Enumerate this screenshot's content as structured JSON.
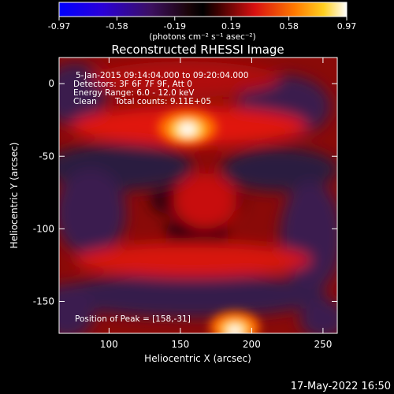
{
  "chart_data": {
    "type": "heatmap",
    "title": "Reconstructed RHESSI Image",
    "xlabel": "Heliocentric X (arcsec)",
    "ylabel": "Heliocentric Y (arcsec)",
    "xlim": [
      65,
      260
    ],
    "ylim": [
      -172,
      18
    ],
    "x_ticks": [
      100,
      150,
      200,
      250
    ],
    "y_ticks": [
      0,
      -50,
      -100,
      -150
    ],
    "colorbar": {
      "min": -0.97,
      "max": 0.97,
      "ticks": [
        "-0.97",
        "-0.58",
        "-0.19",
        "0.19",
        "0.58",
        "0.97"
      ],
      "tick_values": [
        -0.97,
        -0.58,
        -0.19,
        0.19,
        0.58,
        0.97
      ],
      "unit_label": "(photons cm⁻² s⁻¹ asec⁻²)"
    },
    "annotations": {
      "time_range": "5-Jan-2015 09:14:04.000 to 09:20:04.000",
      "detectors": "Detectors: 3F 6F 7F 9F, Att 0",
      "energy": "Energy Range: 6.0 - 12.0 keV",
      "clean": "Clean",
      "counts": "Total counts: 9.11E+05",
      "peak": "Position of Peak = [158,-31]"
    },
    "peak_position": [
      158,
      -31
    ],
    "timestamp": "17-May-2022 16:50"
  }
}
